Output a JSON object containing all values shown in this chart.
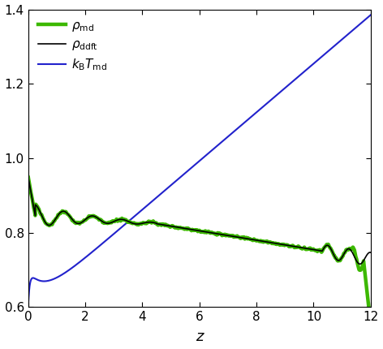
{
  "xlim": [
    0,
    12
  ],
  "ylim": [
    0.6,
    1.4
  ],
  "xlabel": "z",
  "ylabel": "",
  "xticks": [
    0,
    2,
    4,
    6,
    8,
    10,
    12
  ],
  "yticks": [
    0.6,
    0.8,
    1.0,
    1.2,
    1.4
  ],
  "legend": [
    {
      "label": "$\\rho_\\mathrm{md}$",
      "color": "#3cb800",
      "lw": 3.2
    },
    {
      "label": "$\\rho_\\mathrm{ddft}$",
      "color": "black",
      "lw": 1.2
    },
    {
      "label": "$k_\\mathrm{B}T_\\mathrm{md}$",
      "color": "#2222cc",
      "lw": 1.5
    }
  ],
  "figsize": [
    4.72,
    4.3
  ],
  "dpi": 100
}
